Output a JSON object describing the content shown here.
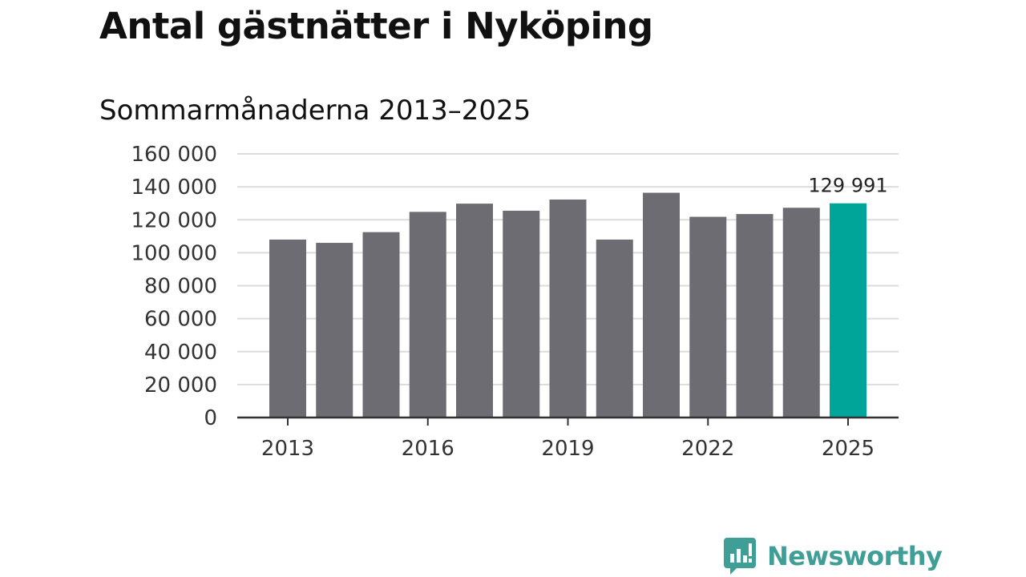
{
  "chart_data": {
    "type": "bar",
    "title": "Antal gästnätter i Nyköping",
    "subtitle": "Sommarmånaderna 2013–2025",
    "categories": [
      "2013",
      "2014",
      "2015",
      "2016",
      "2017",
      "2018",
      "2019",
      "2020",
      "2021",
      "2022",
      "2023",
      "2024",
      "2025"
    ],
    "x_tick_labels": [
      "2013",
      "2016",
      "2019",
      "2022",
      "2025"
    ],
    "values": [
      108000,
      106000,
      112500,
      124800,
      129800,
      125500,
      132300,
      108000,
      136400,
      121800,
      123500,
      127300,
      129991
    ],
    "ylim": [
      0,
      160000
    ],
    "y_ticks": [
      0,
      20000,
      40000,
      60000,
      80000,
      100000,
      120000,
      140000,
      160000
    ],
    "y_tick_labels": [
      "0",
      "20 000",
      "40 000",
      "60 000",
      "80 000",
      "100 000",
      "120 000",
      "140 000",
      "160 000"
    ],
    "highlight_index": 12,
    "data_label": "129 991",
    "bar_color": "#6d6c72",
    "highlight_color": "#00a59a",
    "grid": true,
    "xlabel": "",
    "ylabel": ""
  },
  "brand": {
    "name": "Newsworthy",
    "icon": "newsworthy-logo-icon",
    "color": "#3f9e96"
  }
}
